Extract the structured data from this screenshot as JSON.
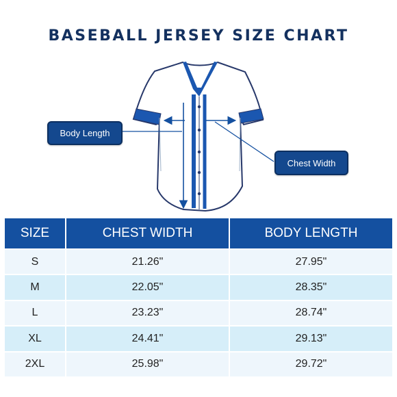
{
  "title": "BASEBALL JERSEY SIZE CHART",
  "callouts": {
    "body_length": "Body Length",
    "chest_width": "Chest Width"
  },
  "colors": {
    "title": "#14315f",
    "accent": "#14488e",
    "header": "#1450a0",
    "row_light": "#eef6fc",
    "row_dark": "#d6eef9"
  },
  "icons": [
    "baseball-jersey-illustration",
    "arrow-icon"
  ],
  "table": {
    "headers": [
      "SIZE",
      "CHEST WIDTH",
      "BODY LENGTH"
    ],
    "rows": [
      [
        "S",
        "21.26\"",
        "27.95\""
      ],
      [
        "M",
        "22.05\"",
        "28.35\""
      ],
      [
        "L",
        "23.23\"",
        "28.74\""
      ],
      [
        "XL",
        "24.41\"",
        "29.13\""
      ],
      [
        "2XL",
        "25.98\"",
        "29.72\""
      ]
    ]
  }
}
